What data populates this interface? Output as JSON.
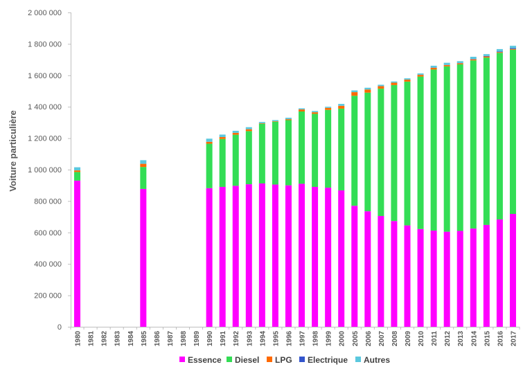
{
  "chart_data": {
    "type": "bar",
    "stacked": true,
    "ylabel": "Voiture particulière",
    "ylim": [
      0,
      2000000
    ],
    "y_ticks": [
      0,
      200000,
      400000,
      600000,
      800000,
      1000000,
      1200000,
      1400000,
      1600000,
      1800000,
      2000000
    ],
    "y_tick_labels": [
      "0",
      "200 000",
      "400 000",
      "600 000",
      "800 000",
      "1 000 000",
      "1 200 000",
      "1 400 000",
      "1 600 000",
      "1 800 000",
      "2 000 000"
    ],
    "grid": false,
    "legend_position": "bottom",
    "categories": [
      "1980",
      "1981",
      "1982",
      "1983",
      "1984",
      "1985",
      "1986",
      "1987",
      "1988",
      "1989",
      "1990",
      "1991",
      "1992",
      "1993",
      "1994",
      "1995",
      "1996",
      "1997",
      "1998",
      "1999",
      "2000",
      "2005",
      "2006",
      "2007",
      "2008",
      "2009",
      "2010",
      "2011",
      "2012",
      "2013",
      "2014",
      "2015",
      "2016",
      "2017"
    ],
    "series": [
      {
        "name": "Essence",
        "color": "#ff00ff",
        "values": [
          930000,
          null,
          null,
          null,
          null,
          877000,
          null,
          null,
          null,
          null,
          882000,
          890000,
          897000,
          907000,
          912000,
          905000,
          900000,
          910000,
          890000,
          885000,
          868000,
          770000,
          735000,
          705000,
          673000,
          645000,
          622000,
          612000,
          605000,
          610000,
          625000,
          648000,
          683000,
          718000
        ]
      },
      {
        "name": "Diesel",
        "color": "#33dd55",
        "values": [
          55000,
          null,
          null,
          null,
          null,
          140000,
          null,
          null,
          null,
          null,
          283000,
          305000,
          325000,
          338000,
          380000,
          400000,
          415000,
          460000,
          465000,
          495000,
          520000,
          700000,
          755000,
          810000,
          865000,
          915000,
          970000,
          1025000,
          1052000,
          1060000,
          1070000,
          1065000,
          1060000,
          1045000
        ]
      },
      {
        "name": "LPG",
        "color": "#ff6a00",
        "values": [
          10000,
          null,
          null,
          null,
          null,
          20000,
          null,
          null,
          null,
          null,
          12000,
          12000,
          12000,
          12000,
          3000,
          3000,
          6000,
          13000,
          10000,
          13000,
          18000,
          23000,
          20000,
          16000,
          15000,
          13000,
          11000,
          11000,
          8000,
          7000,
          7000,
          7000,
          5000,
          5000
        ]
      },
      {
        "name": "Electrique",
        "color": "#3355cc",
        "values": [
          0,
          null,
          null,
          null,
          null,
          0,
          null,
          null,
          null,
          null,
          0,
          0,
          0,
          0,
          0,
          0,
          0,
          0,
          0,
          0,
          0,
          0,
          0,
          0,
          0,
          0,
          0,
          1000,
          1000,
          1000,
          2000,
          3000,
          4000,
          5000
        ]
      },
      {
        "name": "Autres",
        "color": "#5bc8de",
        "values": [
          20000,
          null,
          null,
          null,
          null,
          23000,
          null,
          null,
          null,
          null,
          20000,
          16000,
          13000,
          13000,
          8000,
          7000,
          9000,
          7000,
          8000,
          7000,
          12000,
          11000,
          11000,
          9000,
          8000,
          8000,
          9000,
          12000,
          14000,
          12000,
          14000,
          12000,
          15000,
          15000
        ]
      }
    ]
  }
}
